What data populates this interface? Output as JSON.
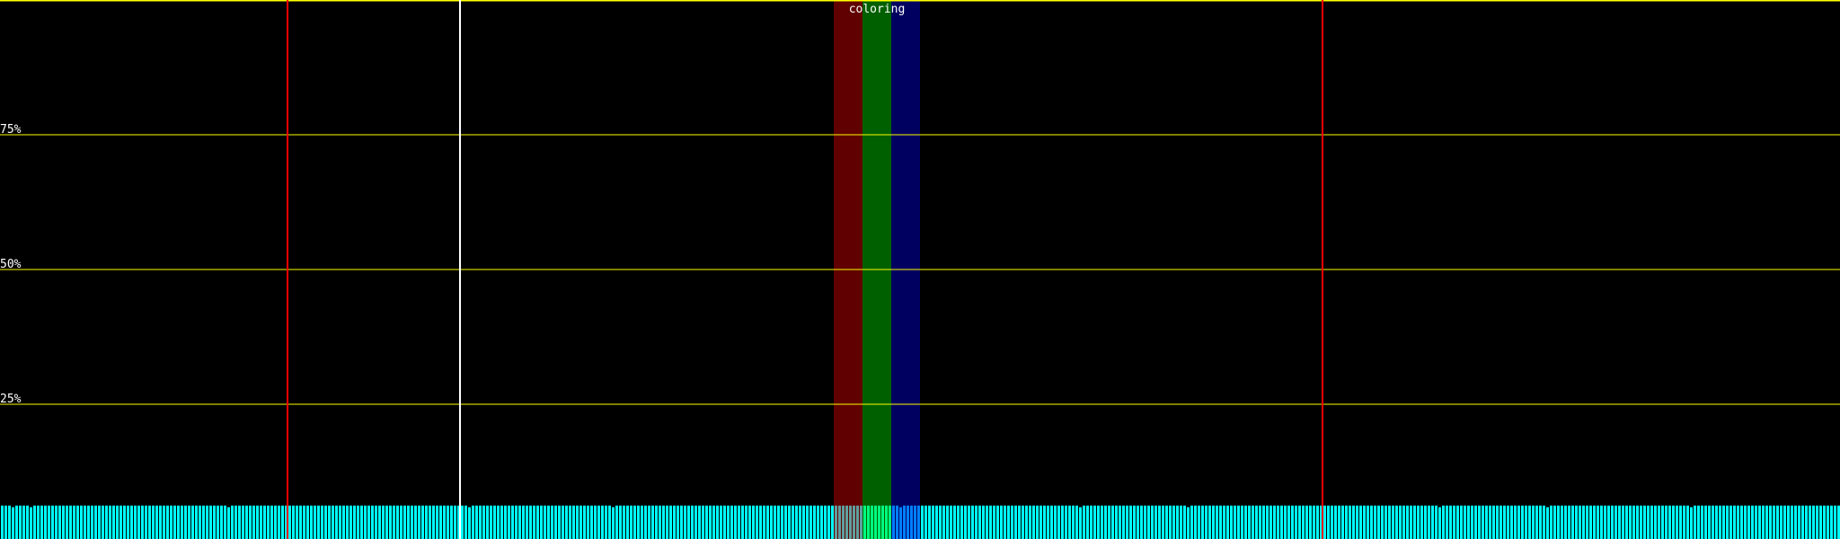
{
  "chart_data": {
    "type": "bar",
    "title": "coloring",
    "ylim": [
      0,
      100
    ],
    "y_ticks": [
      {
        "value": 75,
        "label": "75%"
      },
      {
        "value": 50,
        "label": "50%"
      },
      {
        "value": 25,
        "label": "25%"
      }
    ],
    "bar_count": 512,
    "bar_value_percent": 6.2,
    "lower_bars": {
      "indices": [
        3,
        8,
        63,
        130,
        170,
        250,
        300,
        330,
        400,
        430,
        470
      ],
      "value_percent": 5.9
    },
    "bar_color": "#00ffff",
    "gridline_color": "#ffff00",
    "markers": [
      {
        "bar_index": 80,
        "color": "#ff0000"
      },
      {
        "bar_index": 128,
        "color": "#ffffff"
      },
      {
        "bar_index": 368,
        "color": "#ff0000"
      }
    ],
    "color_bands": [
      {
        "start_bar": 232,
        "end_bar": 240,
        "color": "#600000",
        "bar_color": "#609f9f"
      },
      {
        "start_bar": 240,
        "end_bar": 248,
        "color": "#006000",
        "bar_color": "#00ff80"
      },
      {
        "start_bar": 248,
        "end_bar": 256,
        "color": "#000060",
        "bar_color": "#0080ff"
      }
    ]
  }
}
